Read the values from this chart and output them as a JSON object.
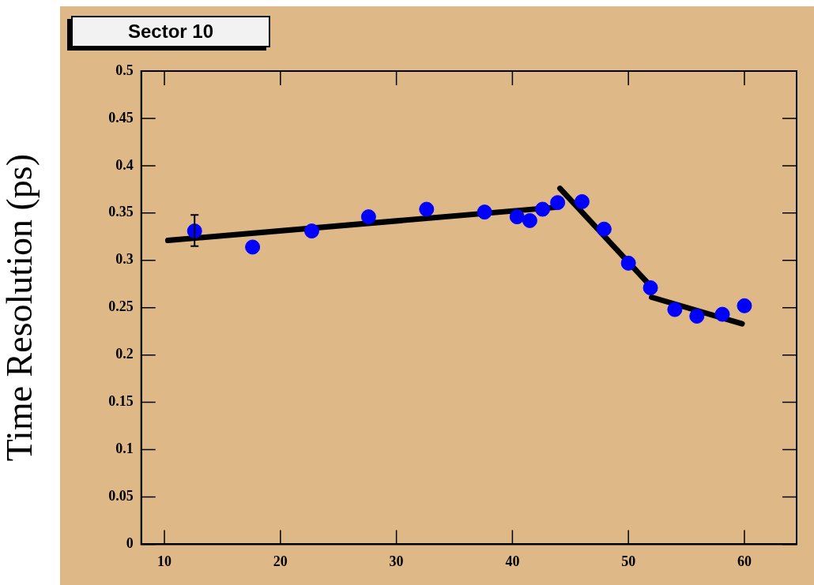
{
  "chart_data": {
    "type": "scatter",
    "title": "Sector 10",
    "ylabel": "Time Resolution (ps)",
    "xlim": [
      8,
      64.5
    ],
    "xticks": [
      10,
      20,
      30,
      40,
      50,
      60
    ],
    "ylim": [
      0,
      0.5
    ],
    "yticks": [
      0,
      0.05,
      0.1,
      0.15,
      0.2,
      0.25,
      0.3,
      0.35,
      0.4,
      0.45,
      0.5
    ],
    "grid": false,
    "legend": false,
    "series": [
      {
        "type": "scatter",
        "marker": "circle",
        "color": "#0000ff",
        "x": [
          12.6,
          17.6,
          22.7,
          27.6,
          32.6,
          37.6,
          40.4,
          41.5,
          42.6,
          43.9,
          46.0,
          47.9,
          50.0,
          51.9,
          54.0,
          55.9,
          58.1,
          60.0
        ],
        "values": [
          0.331,
          0.314,
          0.331,
          0.346,
          0.354,
          0.351,
          0.346,
          0.342,
          0.354,
          0.361,
          0.362,
          0.333,
          0.297,
          0.271,
          0.248,
          0.241,
          0.243,
          0.252
        ],
        "errors": [
          [
            0.315,
            0.348
          ],
          null,
          null,
          null,
          null,
          null,
          null,
          null,
          null,
          null,
          null,
          null,
          null,
          null,
          null,
          null,
          null,
          null
        ]
      },
      {
        "type": "line",
        "marker": "none",
        "color": "#000000",
        "x": [
          10.3,
          43.7
        ],
        "values": [
          0.321,
          0.356
        ]
      },
      {
        "type": "line",
        "marker": "none",
        "color": "#000000",
        "x": [
          44.1,
          51.9
        ],
        "values": [
          0.376,
          0.273
        ]
      },
      {
        "type": "line",
        "marker": "none",
        "color": "#000000",
        "x": [
          52.0,
          59.8
        ],
        "values": [
          0.261,
          0.233
        ]
      }
    ]
  }
}
